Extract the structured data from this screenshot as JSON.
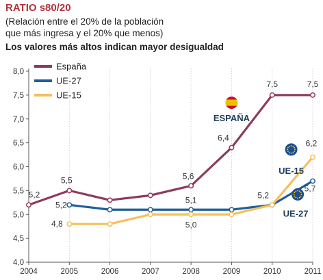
{
  "header": {
    "title": "RATIO s80/20",
    "subtitle_line1": "(Relación entre el 20% de la población",
    "subtitle_line2": "que más ingresa y el 20% que menos)",
    "lead": "Los valores más altos indican mayor desigualdad"
  },
  "chart_data": {
    "type": "line",
    "x": [
      "2004",
      "2005",
      "2006",
      "2007",
      "2008",
      "2009",
      "2010",
      "2011"
    ],
    "ylim": [
      4.0,
      8.0
    ],
    "yticks": [
      "4,0",
      "4,5",
      "5,0",
      "5,5",
      "6,0",
      "6,5",
      "7,0",
      "7,5",
      "8,0"
    ],
    "grid": {
      "vertical": true,
      "horizontal": false
    },
    "legend_position": "top-left",
    "series": [
      {
        "name": "España",
        "color": "#8e3a5f",
        "values": [
          5.2,
          5.5,
          5.3,
          5.4,
          5.6,
          6.4,
          7.5,
          7.5
        ],
        "labels": [
          "5,2",
          "5,5",
          null,
          null,
          "5,6",
          "6,4",
          "7,5",
          "7,5"
        ]
      },
      {
        "name": "UE-27",
        "color": "#1e5f99",
        "values": [
          null,
          5.2,
          5.1,
          5.1,
          5.1,
          5.1,
          5.2,
          5.7
        ],
        "labels": [
          null,
          "5,2",
          null,
          null,
          "5,1",
          null,
          "5,2",
          "5,7"
        ]
      },
      {
        "name": "UE-15",
        "color": "#f6bf5c",
        "values": [
          null,
          4.8,
          4.8,
          5.0,
          5.0,
          5.0,
          5.2,
          6.2
        ],
        "labels": [
          null,
          "4,8",
          null,
          null,
          "5,0",
          null,
          null,
          "6,2"
        ]
      }
    ],
    "annotations": [
      {
        "text": "ESPAÑA",
        "icon": "spain-flag-icon",
        "x": 2009.5,
        "y": 7.0
      },
      {
        "text": "UE-15",
        "icon": "eu-flag-icon",
        "x": 2010.5,
        "y": 5.95
      },
      {
        "text": "UE-27",
        "icon": "eu-flag-icon",
        "x": 2010.6,
        "y": 5.28
      }
    ]
  }
}
